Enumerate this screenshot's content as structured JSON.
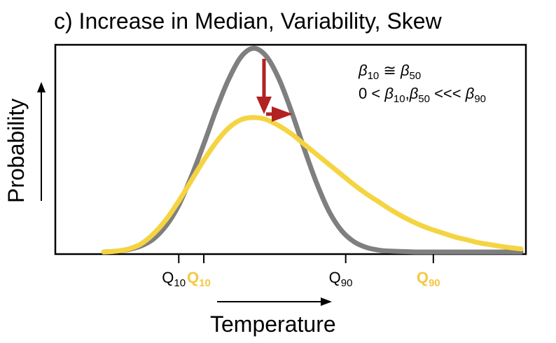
{
  "chart_data": {
    "type": "line",
    "title": "c) Increase in Median, Variability, Skew",
    "xlabel": "Temperature",
    "ylabel": "Probability",
    "xlim": [
      0,
      100
    ],
    "ylim": [
      0,
      1
    ],
    "grid": false,
    "legend": "none",
    "series": [
      {
        "color": "#7f7f7f",
        "x": [
          0,
          3,
          6,
          9,
          12,
          15,
          18,
          21,
          24,
          27,
          30,
          33,
          36,
          39,
          42,
          45,
          48,
          51,
          54,
          57,
          60,
          63,
          66,
          69,
          72,
          75,
          78,
          81,
          84,
          87,
          90,
          93,
          96,
          100
        ],
        "y": [
          0.0,
          0.004,
          0.012,
          0.03,
          0.065,
          0.13,
          0.23,
          0.37,
          0.53,
          0.7,
          0.85,
          0.96,
          1.0,
          0.96,
          0.85,
          0.69,
          0.51,
          0.34,
          0.2,
          0.105,
          0.05,
          0.022,
          0.009,
          0.004,
          0.002,
          0.0,
          0.0,
          0.0,
          0.0,
          0.0,
          0.0,
          0.0,
          0.0,
          0.0
        ]
      },
      {
        "color": "#f5d442",
        "x": [
          0,
          3,
          6,
          9,
          12,
          15,
          18,
          21,
          24,
          27,
          30,
          33,
          36,
          39,
          42,
          45,
          48,
          51,
          54,
          57,
          60,
          63,
          66,
          69,
          72,
          75,
          78,
          81,
          84,
          87,
          90,
          93,
          96,
          100
        ],
        "y": [
          0.0,
          0.004,
          0.015,
          0.04,
          0.09,
          0.16,
          0.25,
          0.35,
          0.45,
          0.54,
          0.61,
          0.65,
          0.66,
          0.65,
          0.62,
          0.58,
          0.53,
          0.48,
          0.43,
          0.38,
          0.33,
          0.285,
          0.245,
          0.205,
          0.17,
          0.14,
          0.115,
          0.095,
          0.075,
          0.06,
          0.045,
          0.035,
          0.025,
          0.015
        ]
      }
    ],
    "x_ticks": [
      {
        "x": 18,
        "main": "Q",
        "sub": "10",
        "color": "#000000"
      },
      {
        "x": 24,
        "main": "Q",
        "sub": "10",
        "color": "#f5c842"
      },
      {
        "x": 58,
        "main": "Q",
        "sub": "90",
        "color": "#000000"
      },
      {
        "x": 79,
        "main": "Q",
        "sub": "90",
        "color": "#f5c842"
      }
    ],
    "annotations": {
      "line1": {
        "b": "β",
        "sub1": "10",
        "op": " ≅ ",
        "b2": "β",
        "sub2": "50"
      },
      "line2": {
        "lead": "0 < ",
        "b": "β",
        "sub1": "10",
        "comma": ",",
        "b2": "β",
        "sub2": "50",
        "op": " <<< ",
        "b3": "β",
        "sub3": "90"
      }
    },
    "arrow_color": "#b22222"
  }
}
